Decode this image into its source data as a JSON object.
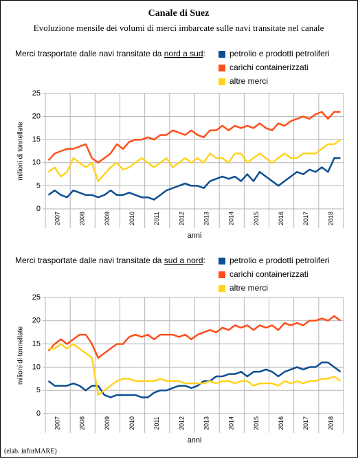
{
  "title": "Canale di Suez",
  "subtitle": "Evoluzione mensile dei volumi di merci imbarcate sulle navi transitate nel canale",
  "note": "(elab. inforMARE)",
  "chart_data": [
    {
      "type": "line",
      "heading": [
        "Merci trasportate dalle navi transitate da ",
        "nord a sud",
        ":"
      ],
      "xlabel": "anni",
      "ylabel": "milioni di tonnellate",
      "categories": [
        "2007",
        null,
        null,
        null,
        "2008",
        null,
        null,
        null,
        "2009",
        null,
        null,
        null,
        "2010",
        null,
        null,
        null,
        "2011",
        null,
        null,
        null,
        "2012",
        null,
        null,
        null,
        "2013",
        null,
        null,
        null,
        "2014",
        null,
        null,
        null,
        "2015",
        null,
        null,
        null,
        "2016",
        null,
        null,
        null,
        "2017",
        null,
        null,
        null,
        "2018",
        null,
        null,
        null
      ],
      "ylim": [
        0,
        25
      ],
      "yticks": [
        0,
        5,
        10,
        15,
        20,
        25
      ],
      "grid": true,
      "series": [
        {
          "name": "petrolio e prodotti petroliferi",
          "color": "#0c4f93",
          "values": [
            3,
            4,
            3,
            2.5,
            4,
            3.5,
            3,
            3,
            2.5,
            3,
            4,
            3,
            3,
            3.5,
            3,
            2.5,
            2.5,
            2,
            3,
            4,
            4.5,
            5,
            5.5,
            5,
            5,
            4.5,
            6,
            6.5,
            7,
            6.5,
            7,
            6,
            7.5,
            6,
            8,
            7,
            6,
            5,
            6,
            7,
            8,
            7.5,
            8.5,
            8,
            9,
            8,
            11,
            11
          ]
        },
        {
          "name": "carichi containerizzati",
          "color": "#ff4e1a",
          "values": [
            10.5,
            12,
            12.5,
            13,
            13,
            13.5,
            14,
            11,
            10,
            11,
            12,
            14,
            13,
            14.5,
            15,
            15,
            15.5,
            15,
            16,
            16,
            17,
            16.5,
            16,
            17,
            16,
            15.5,
            17,
            17,
            18,
            17,
            18,
            17.5,
            18,
            17.5,
            18.5,
            17.5,
            17,
            18.5,
            18,
            19,
            19.5,
            20,
            19.5,
            20.5,
            21,
            19.5,
            21,
            21
          ]
        },
        {
          "name": "altre merci",
          "color": "#ffd320",
          "values": [
            8,
            9,
            7,
            8,
            11,
            10,
            9,
            10,
            6,
            7.5,
            9,
            10,
            8.5,
            9,
            10,
            11,
            10,
            9,
            10,
            11,
            9,
            10,
            11,
            10,
            11,
            10,
            12,
            11,
            11,
            10,
            12,
            12,
            10,
            11,
            12,
            11,
            10,
            11,
            12,
            11,
            11,
            12,
            12,
            12,
            13,
            14,
            14,
            15
          ]
        }
      ]
    },
    {
      "type": "line",
      "heading": [
        "Merci trasportate dalle navi transitate da ",
        "sud a nord",
        ":"
      ],
      "xlabel": "anni",
      "ylabel": "milioni di tonnellate",
      "categories": [
        "2007",
        null,
        null,
        null,
        "2008",
        null,
        null,
        null,
        "2009",
        null,
        null,
        null,
        "2010",
        null,
        null,
        null,
        "2011",
        null,
        null,
        null,
        "2012",
        null,
        null,
        null,
        "2013",
        null,
        null,
        null,
        "2014",
        null,
        null,
        null,
        "2015",
        null,
        null,
        null,
        "2016",
        null,
        null,
        null,
        "2017",
        null,
        null,
        null,
        "2018",
        null,
        null,
        null
      ],
      "ylim": [
        0,
        25
      ],
      "yticks": [
        0,
        5,
        10,
        15,
        20,
        25
      ],
      "grid": true,
      "series": [
        {
          "name": "petrolio e prodotti petroliferi",
          "color": "#0c4f93",
          "values": [
            7,
            6,
            6,
            6,
            6.5,
            6,
            5,
            6,
            6,
            4,
            3.5,
            4,
            4,
            4,
            4,
            3.5,
            3.5,
            4.5,
            5,
            5,
            5.5,
            6,
            6,
            5.5,
            6,
            7,
            7,
            8,
            8,
            8.5,
            8.5,
            9,
            8,
            9,
            9,
            9.5,
            9,
            8,
            9,
            9.5,
            10,
            9.5,
            10,
            10,
            11,
            11,
            10,
            9
          ]
        },
        {
          "name": "carichi containerizzati",
          "color": "#ff4e1a",
          "values": [
            13.5,
            15,
            16,
            15,
            16,
            17,
            17,
            15,
            12,
            13,
            14,
            15,
            15,
            16.5,
            17,
            16.5,
            17,
            16,
            17,
            17,
            17,
            16.5,
            17,
            16,
            17,
            17.5,
            18,
            17.5,
            18.5,
            18,
            19,
            18.5,
            19,
            18,
            19,
            18.5,
            19,
            18,
            19.5,
            19,
            19.5,
            19,
            20,
            20,
            20.5,
            20,
            21,
            20
          ]
        },
        {
          "name": "altre merci",
          "color": "#ffd320",
          "values": [
            14,
            14,
            15,
            14,
            15,
            14,
            13,
            12,
            4,
            5,
            6,
            7,
            7.5,
            7.5,
            7,
            7,
            7,
            7,
            7.5,
            7,
            7,
            7,
            6.5,
            6.5,
            6.5,
            6.5,
            7,
            6.5,
            7,
            7,
            6.5,
            7,
            7,
            6,
            6.5,
            6.5,
            6.5,
            6,
            7,
            6.5,
            7,
            6.5,
            7,
            7,
            7.5,
            7.5,
            8,
            7
          ]
        }
      ]
    }
  ]
}
